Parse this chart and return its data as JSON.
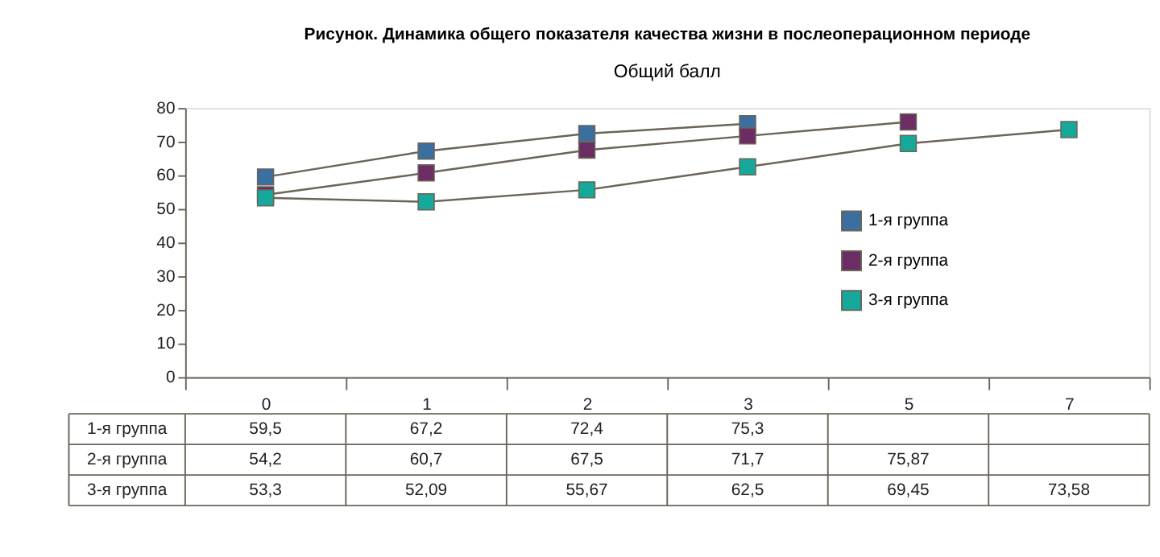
{
  "chart_data": {
    "type": "line",
    "title": "Рисунок. Динамика общего показателя качества жизни в послеоперационном периоде",
    "subtitle": "Общий балл",
    "categories": [
      "0",
      "1",
      "2",
      "3",
      "5",
      "7"
    ],
    "series": [
      {
        "name": "1-я группа",
        "color": "#3a6fa0",
        "values": [
          59.5,
          67.2,
          72.4,
          75.3,
          null,
          null
        ],
        "value_labels": [
          "59,5",
          "67,2",
          "72,4",
          "75,3",
          null,
          null
        ]
      },
      {
        "name": "2-я группа",
        "color": "#6b2d63",
        "values": [
          54.2,
          60.7,
          67.5,
          71.7,
          75.87,
          null
        ],
        "value_labels": [
          "54,2",
          "60,7",
          "67,5",
          "71,7",
          "75,87",
          null
        ]
      },
      {
        "name": "3-я группа",
        "color": "#16a89a",
        "values": [
          53.3,
          52.09,
          55.67,
          62.5,
          69.45,
          73.58
        ],
        "value_labels": [
          "53,3",
          "52,09",
          "55,67",
          "62,5",
          "69,45",
          "73,58"
        ]
      }
    ],
    "ylim": [
      0,
      80
    ],
    "yticks": [
      0,
      10,
      20,
      30,
      40,
      50,
      60,
      70,
      80
    ],
    "marker": "square",
    "legend": "right",
    "grid": false
  }
}
